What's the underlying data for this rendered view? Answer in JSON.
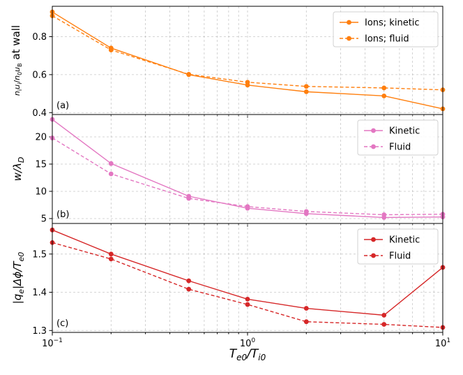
{
  "chart_data": [
    {
      "type": "line",
      "panel_label": "(a)",
      "x": [
        0.1,
        0.2,
        0.5,
        1,
        2,
        5,
        10
      ],
      "xscale": "log",
      "xlim": [
        0.1,
        10
      ],
      "ylim": [
        0.39,
        0.96
      ],
      "yticks": [
        0.4,
        0.6,
        0.8
      ],
      "ytick_labels": [
        "0.4",
        "0.6",
        "0.8"
      ],
      "ylabel": "n_i u_i / n_0 u_B at wall",
      "ylabel_display": {
        "numerator": "n",
        "numerator_sub": "i",
        "numerator2": "u",
        "numerator2_sub": "i",
        "denominator": "n",
        "denominator_sub": "0",
        "denominator2": "u",
        "denominator2_sub": "B",
        "suffix": "at wall"
      },
      "legend_position": "top-right",
      "color": "#ff7f0e",
      "series": [
        {
          "name": "Ions; kinetic",
          "style": "solid",
          "values": [
            0.93,
            0.74,
            0.6,
            0.545,
            0.51,
            0.488,
            0.42
          ]
        },
        {
          "name": "Ions; fluid",
          "style": "dashed",
          "values": [
            0.91,
            0.73,
            0.602,
            0.56,
            0.538,
            0.53,
            0.52
          ]
        }
      ]
    },
    {
      "type": "line",
      "panel_label": "(b)",
      "x": [
        0.1,
        0.2,
        0.5,
        1,
        2,
        5,
        10
      ],
      "xscale": "log",
      "xlim": [
        0.1,
        10
      ],
      "ylim": [
        4.1,
        24.1
      ],
      "yticks": [
        5,
        10,
        15,
        20
      ],
      "ytick_labels": [
        "5",
        "10",
        "15",
        "20"
      ],
      "ylabel": "w/λ_D",
      "ylabel_display": {
        "main": "w/λ",
        "sub": "D"
      },
      "legend_position": "top-right",
      "color": "#e377c2",
      "series": [
        {
          "name": "Kinetic",
          "style": "solid",
          "values": [
            23.2,
            15.1,
            9.1,
            6.9,
            5.9,
            5.2,
            5.3
          ]
        },
        {
          "name": "Fluid",
          "style": "dashed",
          "values": [
            19.8,
            13.2,
            8.7,
            7.2,
            6.3,
            5.7,
            5.8
          ]
        }
      ]
    },
    {
      "type": "line",
      "panel_label": "(c)",
      "x": [
        0.1,
        0.2,
        0.5,
        1,
        2,
        5,
        10
      ],
      "xscale": "log",
      "xlim": [
        0.1,
        10
      ],
      "ylim": [
        1.295,
        1.58
      ],
      "yticks": [
        1.3,
        1.4,
        1.5
      ],
      "ytick_labels": [
        "1.3",
        "1.4",
        "1.5"
      ],
      "ylabel": "|q_e|Δφ/T_e0",
      "ylabel_display": {
        "main": "|q",
        "sub1": "e",
        "mid": "|Δϕ/T",
        "sub2": "e0"
      },
      "legend_position": "top-right",
      "color": "#d62728",
      "xticks": [
        0.1,
        1,
        10
      ],
      "xtick_labels": [
        {
          "base": "10",
          "exp": "−1"
        },
        {
          "base": "10",
          "exp": "0"
        },
        {
          "base": "10",
          "exp": "1"
        }
      ],
      "xlabel": "T_e0/T_i0",
      "xlabel_display": {
        "a": "T",
        "a_sub": "e0",
        "b": "/T",
        "b_sub": "i0"
      },
      "series": [
        {
          "name": "Kinetic",
          "style": "solid",
          "values": [
            1.563,
            1.5,
            1.43,
            1.382,
            1.358,
            1.34,
            1.465
          ]
        },
        {
          "name": "Fluid",
          "style": "dashed",
          "values": [
            1.53,
            1.487,
            1.408,
            1.368,
            1.323,
            1.316,
            1.308
          ]
        }
      ]
    }
  ]
}
